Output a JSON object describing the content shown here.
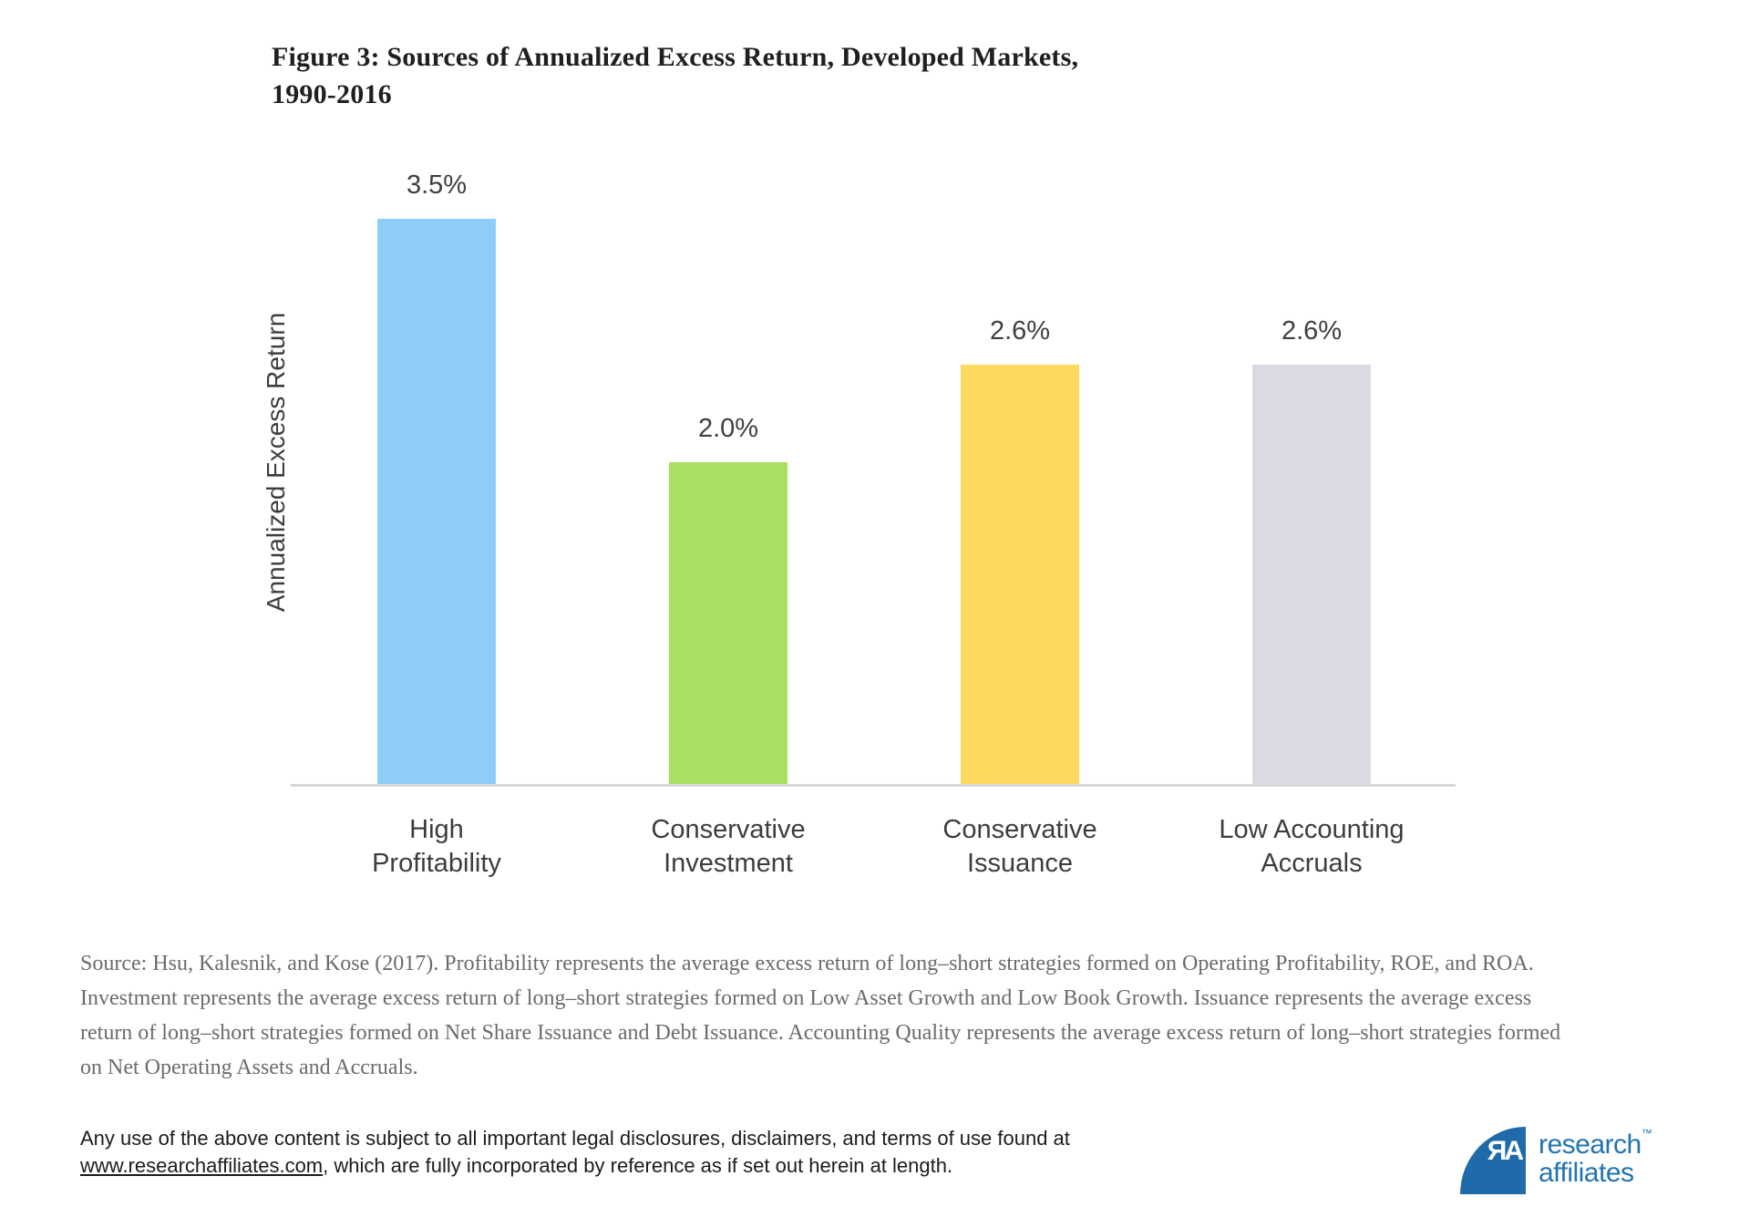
{
  "title": {
    "line1": "Figure 3: Sources of Annualized Excess Return, Developed Markets,",
    "line2": "1990-2016"
  },
  "chart_data": {
    "type": "bar",
    "categories": [
      "High Profitability",
      "Conservative Investment",
      "Conservative Issuance",
      "Low Accounting Accruals"
    ],
    "category_lines": [
      [
        "High",
        "Profitability"
      ],
      [
        "Conservative",
        "Investment"
      ],
      [
        "Conservative",
        "Issuance"
      ],
      [
        "Low Accounting",
        "Accruals"
      ]
    ],
    "values": [
      3.5,
      2.0,
      2.6,
      2.6
    ],
    "value_labels": [
      "3.5%",
      "2.0%",
      "2.6%",
      "2.6%"
    ],
    "bar_colors": [
      "#8dcdf7",
      "#a9e061",
      "#fdd960",
      "#dbdae3"
    ],
    "title": "Figure 3: Sources of Annualized Excess Return, Developed Markets, 1990-2016",
    "xlabel": "",
    "ylabel": "Annualized Excess Return",
    "ylim": [
      0,
      3.8
    ],
    "grid": false,
    "legend": "none",
    "axis_line_color": "#d8d8d8"
  },
  "source_note": "Source: Hsu, Kalesnik, and Kose (2017). Profitability represents the average excess return of long–short strategies formed on Operating Profitability, ROE, and ROA. Investment represents the average excess return of long–short strategies formed on Low Asset Growth and Low Book Growth. Issuance represents the average excess return of long–short strategies formed on Net Share Issuance and Debt Issuance. Accounting Quality represents the average excess return of long–short strategies formed on Net Operating Assets and Accruals.",
  "disclaimer": {
    "line1": "Any use of the above content is subject to all important legal disclosures, disclaimers, and terms of use found at",
    "link": "www.researchaffiliates.com",
    "after_link": ", which are fully incorporated by reference as if set out herein at length."
  },
  "logo": {
    "monogram": "ЯA",
    "line1": "research",
    "tm": "™",
    "line2": "affiliates",
    "brand_blue": "#1f6ba9"
  }
}
